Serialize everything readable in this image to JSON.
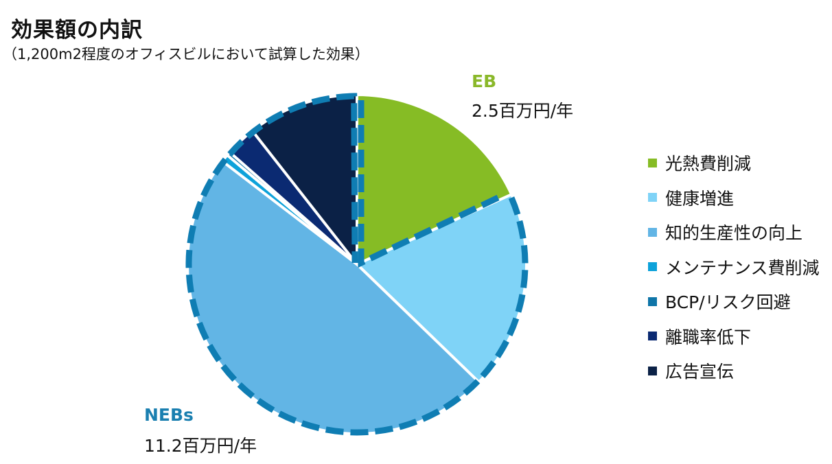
{
  "header": {
    "title": "効果額の内訳",
    "subtitle": "（1,200m2程度のオフィスビルにおいて試算した効果）"
  },
  "groups": {
    "eb": {
      "label": "EB",
      "value_text": "2.5百万円/年",
      "color": "#8ab82a"
    },
    "nebs": {
      "label": "NEBs",
      "value_text": "11.2百万円/年",
      "color": "#1a7fb0"
    }
  },
  "legend": [
    {
      "label": "光熱費削減",
      "color": "#86bc25"
    },
    {
      "label": "健康増進",
      "color": "#7fd3f7"
    },
    {
      "label": "知的生産性の向上",
      "color": "#62b5e5"
    },
    {
      "label": "メンテナンス費削減",
      "color": "#0da2da"
    },
    {
      "label": "BCP/リスク回避",
      "color": "#0f75a8"
    },
    {
      "label": "離職率低下",
      "color": "#0b2a72"
    },
    {
      "label": "広告宣伝",
      "color": "#0b2146"
    }
  ],
  "chart_data": {
    "type": "pie",
    "title": "効果額の内訳",
    "subtitle": "（1,200m2程度のオフィスビルにおいて試算した効果）",
    "unit": "百万円/年",
    "categories": [
      "光熱費削減",
      "健康増進",
      "知的生産性の向上",
      "メンテナンス費削減",
      "BCP/リスク回避",
      "離職率低下",
      "広告宣伝"
    ],
    "values": [
      2.5,
      2.6,
      6.6,
      0.1,
      0.05,
      0.4,
      1.45
    ],
    "colors": [
      "#86bc25",
      "#7fd3f7",
      "#62b5e5",
      "#0da2da",
      "#0f75a8",
      "#0b2a72",
      "#0b2146"
    ],
    "groups": [
      {
        "name": "EB",
        "total": 2.5,
        "members": [
          "光熱費削減"
        ]
      },
      {
        "name": "NEBs",
        "total": 11.2,
        "members": [
          "健康増進",
          "知的生産性の向上",
          "メンテナンス費削減",
          "BCP/リスク回避",
          "離職率低下",
          "広告宣伝"
        ]
      }
    ],
    "start_angle_deg": 0,
    "direction": "clockwise",
    "legend_position": "right",
    "annotations": [
      "EB 2.5百万円/年",
      "NEBs 11.2百万円/年"
    ]
  }
}
